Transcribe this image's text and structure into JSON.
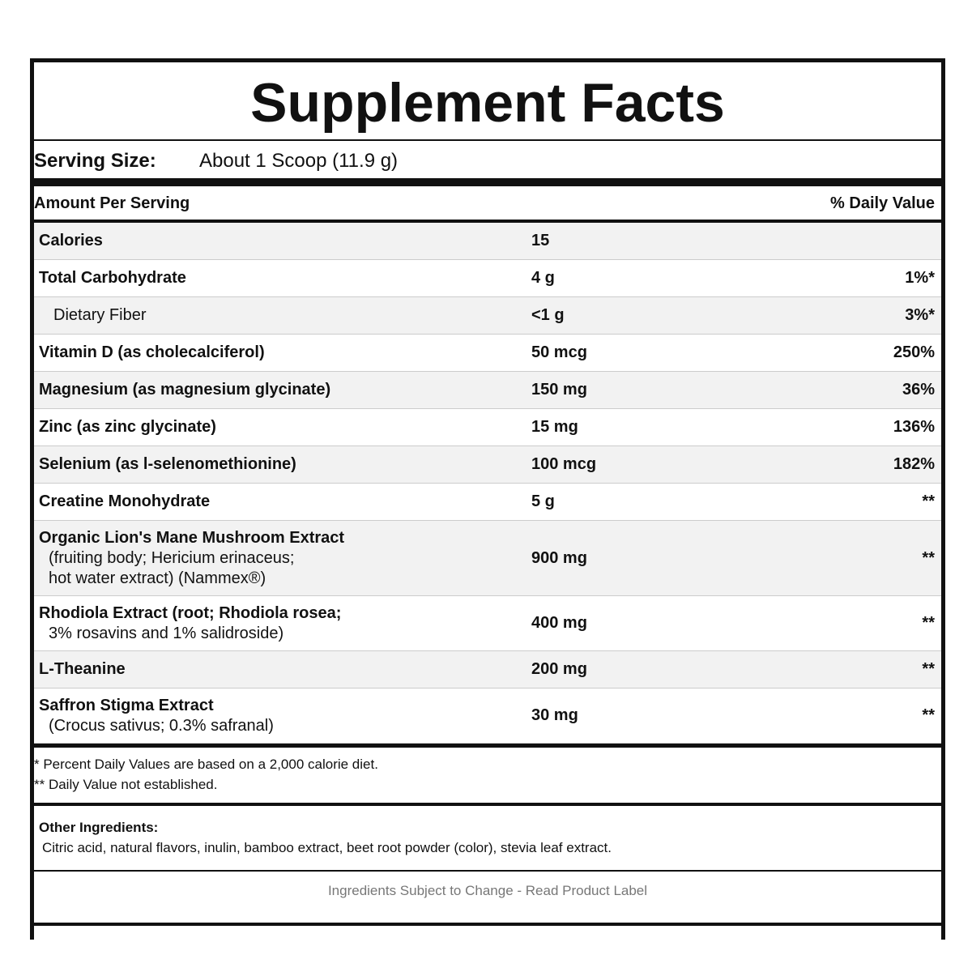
{
  "title": "Supplement Facts",
  "serving": {
    "label": "Serving Size:",
    "value": "About 1 Scoop (11.9 g)"
  },
  "header": {
    "left": "Amount Per Serving",
    "right": "% Daily Value"
  },
  "rows": [
    {
      "name": [
        "Calories"
      ],
      "amount": "15"
    },
    {
      "name": [
        "Total Carbohydrate"
      ],
      "amount": "4 g",
      "dv": "1%*"
    },
    {
      "name": [
        "Dietary Fiber"
      ],
      "amount": "<1 g",
      "dv": "3%*",
      "style": "sub"
    },
    {
      "name": [
        "Vitamin D (as cholecalciferol)"
      ],
      "amount": "50 mcg",
      "dv": "250%"
    },
    {
      "name": [
        "Magnesium (as magnesium glycinate)"
      ],
      "amount": "150 mg",
      "dv": "36%"
    },
    {
      "name": [
        "Zinc (as zinc glycinate)"
      ],
      "amount": "15 mg",
      "dv": "136%"
    },
    {
      "name": [
        "Selenium (as l-selenomethionine)"
      ],
      "amount": "100 mcg",
      "dv": "182%"
    },
    {
      "name": [
        "Creatine Monohydrate"
      ],
      "amount": "5 g",
      "dv": "**"
    },
    {
      "name": [
        "Organic Lion's Mane Mushroom Extract",
        "(fruiting body; Hericium erinaceus;",
        "hot water extract) (Nammex®)"
      ],
      "amount": "900 mg",
      "dv": "**"
    },
    {
      "name": [
        "Rhodiola Extract (root; Rhodiola rosea;",
        "3% rosavins and 1% salidroside)"
      ],
      "amount": "400 mg",
      "dv": "**"
    },
    {
      "name": [
        "L-Theanine"
      ],
      "amount": "200 mg",
      "dv": "**"
    },
    {
      "name": [
        "Saffron Stigma Extract",
        "(Crocus sativus; 0.3% safranal)"
      ],
      "amount": "30 mg",
      "dv": "**"
    }
  ],
  "footnotes": [
    "* Percent Daily Values are based on a 2,000 calorie diet.",
    "** Daily Value not established."
  ],
  "other_ingredients": {
    "label": "Other Ingredients:",
    "text": "Citric acid, natural flavors, inulin, bamboo extract, beet root powder (color), stevia leaf extract."
  },
  "footer": "Ingredients Subject to Change - Read Product Label"
}
